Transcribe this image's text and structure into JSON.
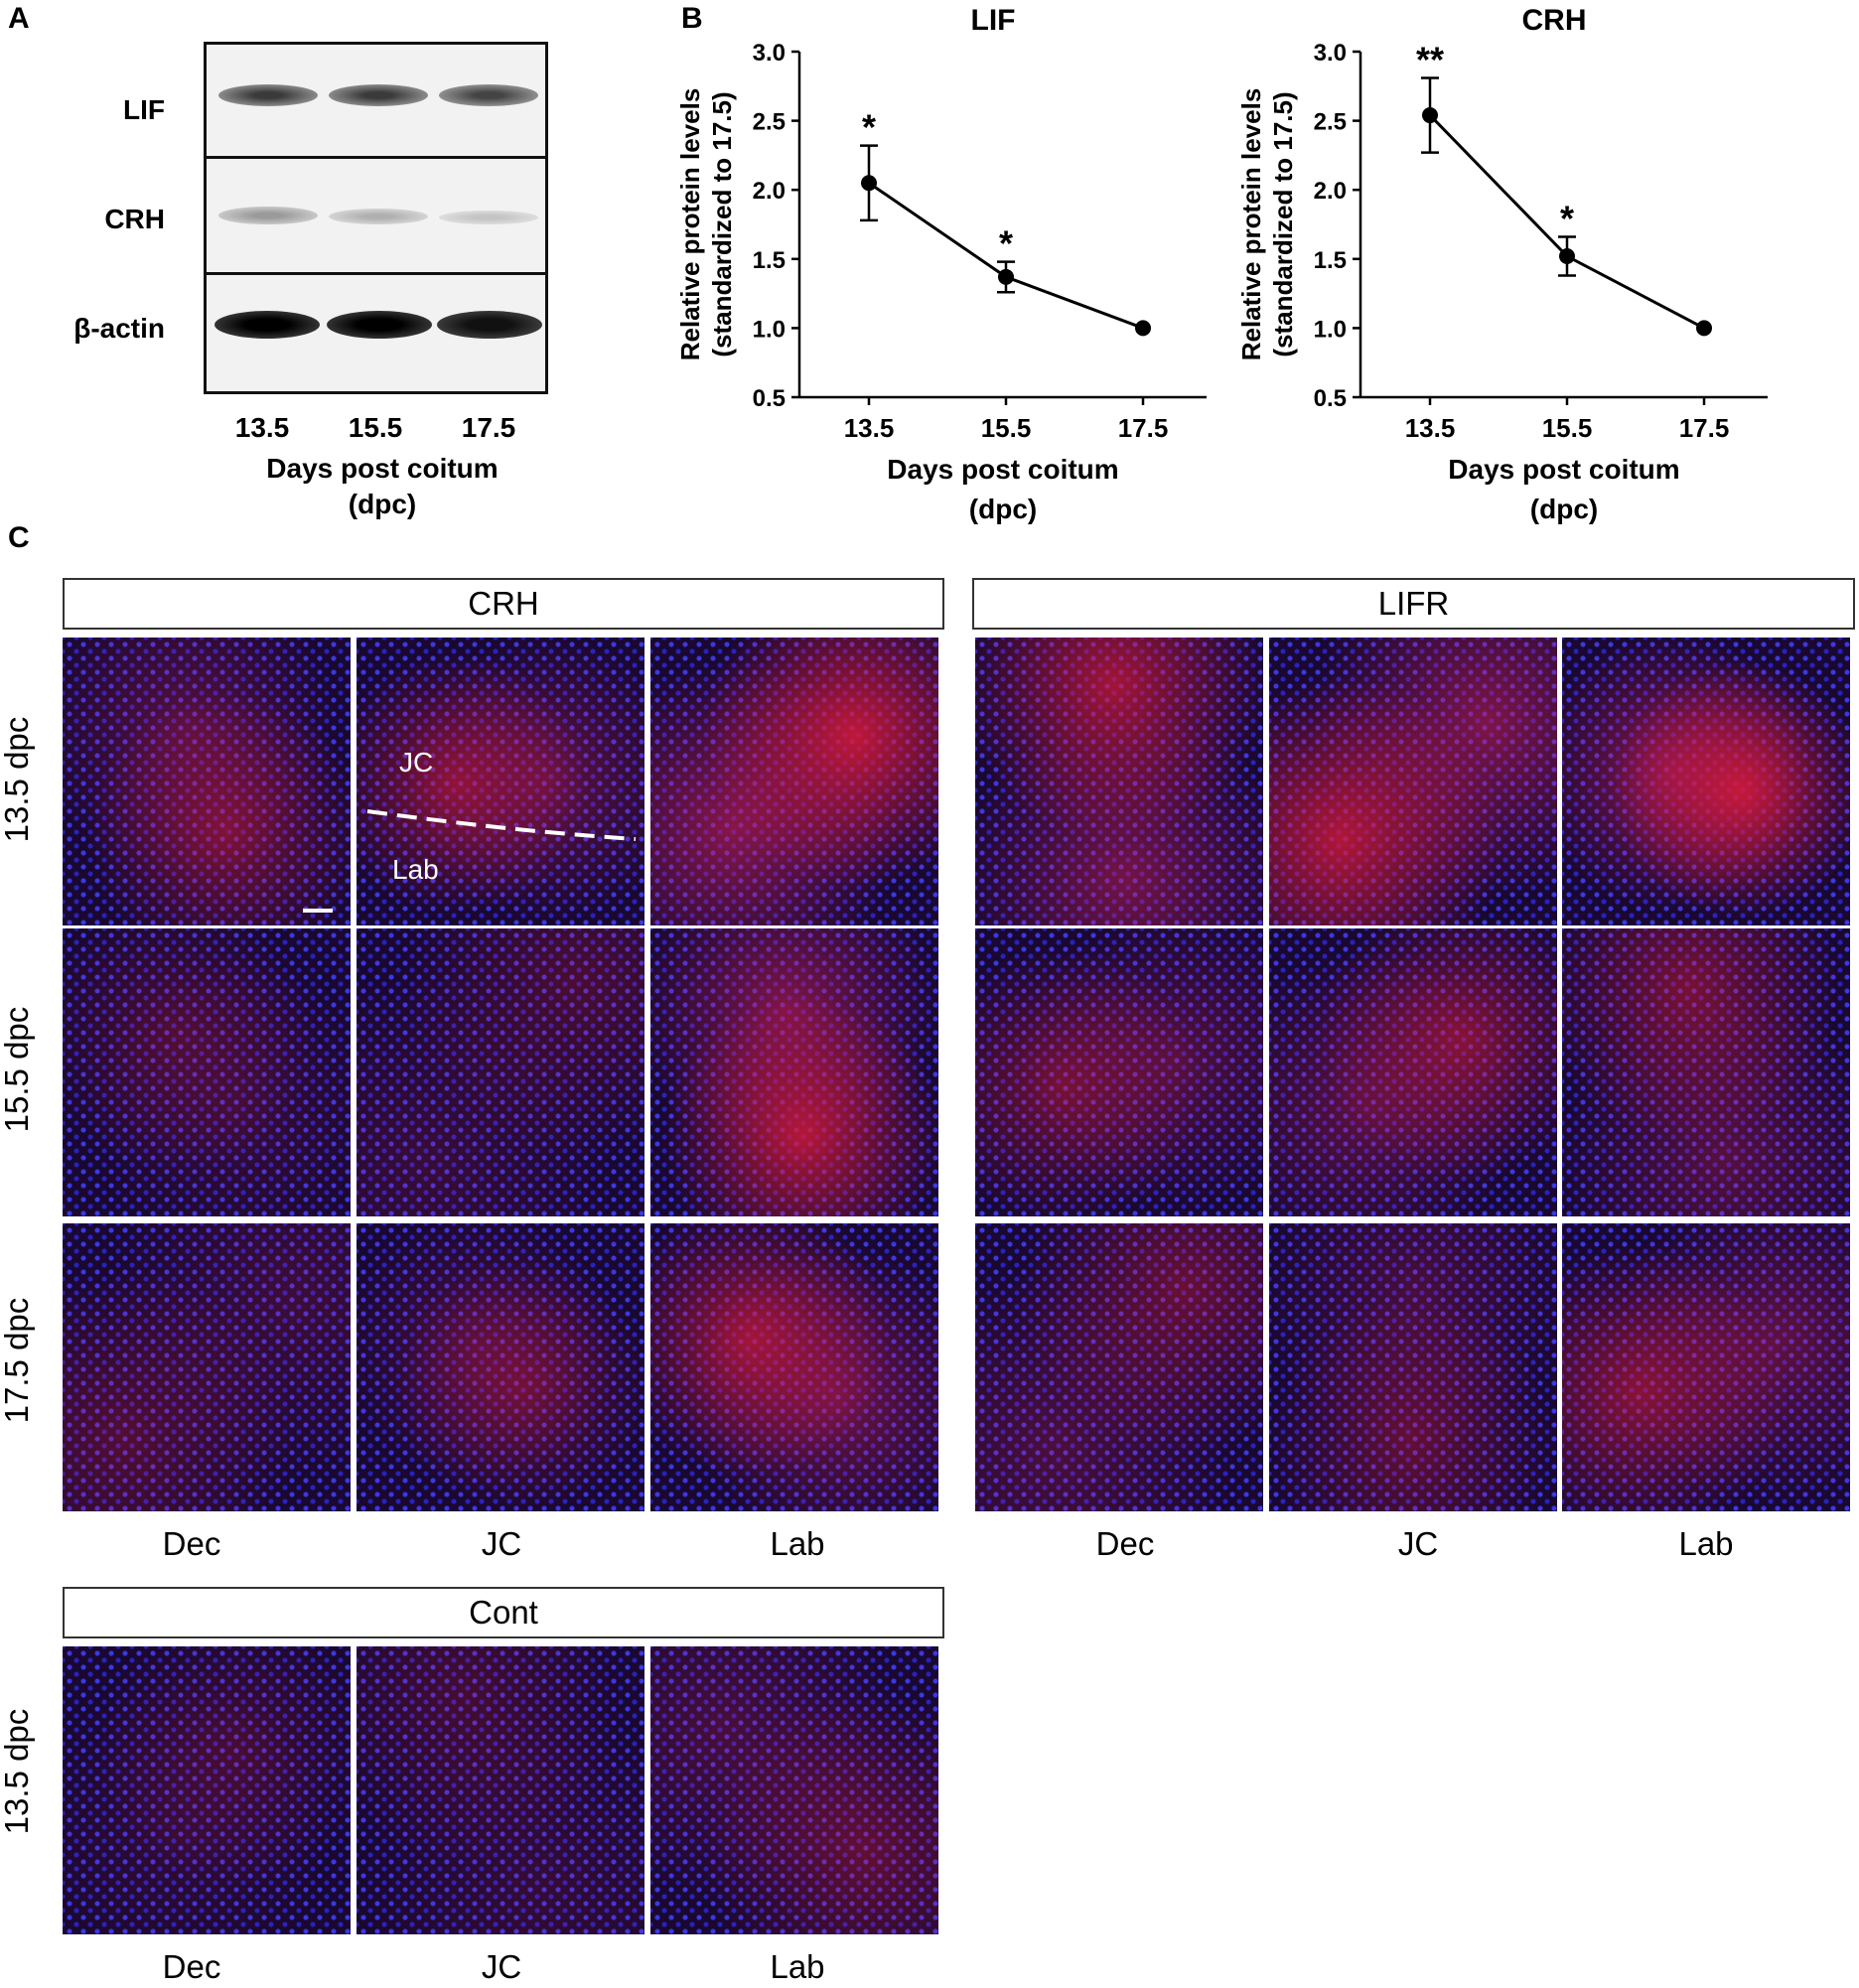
{
  "panel_a": {
    "letter": "A",
    "rows": [
      "LIF",
      "CRH",
      "β-actin"
    ],
    "lanes": [
      "13.5",
      "15.5",
      "17.5"
    ],
    "xlabel_line1": "Days post coitum",
    "xlabel_line2": "(dpc)"
  },
  "panel_b": {
    "letter": "B"
  },
  "chart_data": [
    {
      "type": "line",
      "title": "LIF",
      "categories": [
        "13.5",
        "15.5",
        "17.5"
      ],
      "values": [
        2.05,
        1.37,
        1.0
      ],
      "errors": [
        0.27,
        0.11,
        0.0
      ],
      "significance": [
        "*",
        "*",
        ""
      ],
      "ylabel_line1": "Relative protein levels",
      "ylabel_line2": "(standardized to 17.5)",
      "xlabel_line1": "Days post coitum",
      "xlabel_line2": "(dpc)",
      "ylim": [
        0.5,
        3.0
      ],
      "yticks": [
        "0.5",
        "1.0",
        "1.5",
        "2.0",
        "2.5",
        "3.0"
      ]
    },
    {
      "type": "line",
      "title": "CRH",
      "categories": [
        "13.5",
        "15.5",
        "17.5"
      ],
      "values": [
        2.54,
        1.52,
        1.0
      ],
      "errors": [
        0.27,
        0.14,
        0.0
      ],
      "significance": [
        "**",
        "*",
        ""
      ],
      "ylabel_line1": "Relative protein levels",
      "ylabel_line2": "(standardized to 17.5)",
      "xlabel_line1": "Days post coitum",
      "xlabel_line2": "(dpc)",
      "ylim": [
        0.5,
        3.0
      ],
      "yticks": [
        "0.5",
        "1.0",
        "1.5",
        "2.0",
        "2.5",
        "3.0"
      ]
    }
  ],
  "panel_c": {
    "letter": "C",
    "crh_header": "CRH",
    "lifr_header": "LIFR",
    "cont_header": "Cont",
    "row_labels": [
      "13.5 dpc",
      "15.5 dpc",
      "17.5 dpc"
    ],
    "cont_row_label": "13.5 dpc",
    "col_labels": [
      "Dec",
      "JC",
      "Lab"
    ],
    "jc_annotation": "JC",
    "lab_annotation": "Lab",
    "colors": {
      "nuclei": "#2a2ad8",
      "stain": "#d81a3a",
      "background": "#1a0830"
    }
  }
}
